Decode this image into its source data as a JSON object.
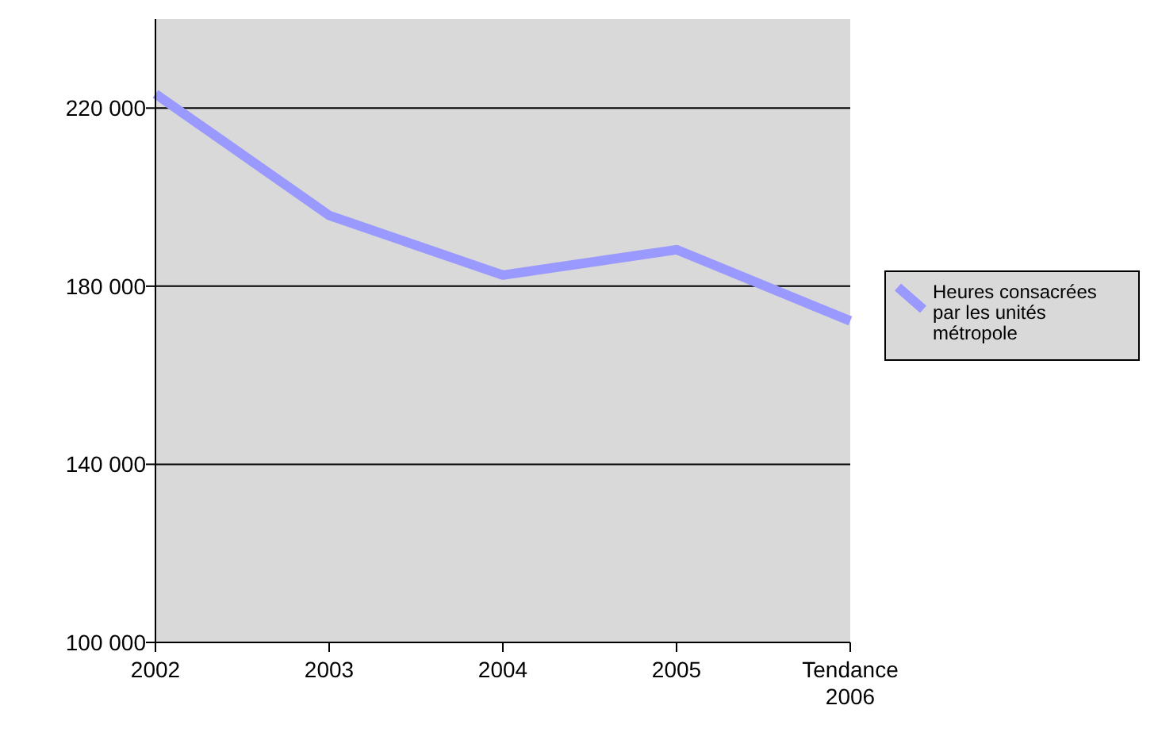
{
  "chart_data": {
    "type": "line",
    "categories": [
      "2002",
      "2003",
      "2004",
      "2005",
      "Tendance 2006"
    ],
    "series": [
      {
        "name": "Heures consacrées par les unités métropole",
        "color": "#9999ff",
        "values": [
          223200,
          195900,
          182500,
          188200,
          172200
        ]
      }
    ],
    "ylim": [
      100000,
      240000
    ],
    "yticks": [
      {
        "value": 100000,
        "label": "100 000"
      },
      {
        "value": 140000,
        "label": "140 000"
      },
      {
        "value": 180000,
        "label": "180 000"
      },
      {
        "value": 220000,
        "label": "220 000"
      }
    ],
    "grid": "y",
    "legend": "right",
    "line_style": "solid"
  }
}
